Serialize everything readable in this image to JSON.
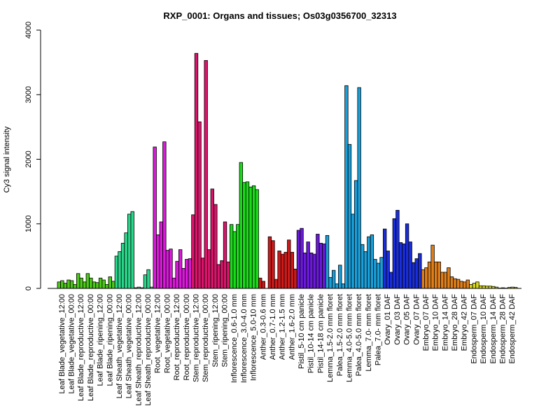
{
  "chart_data": {
    "type": "bar",
    "title": "RXP_0001: Organs and tissues; Os03g0356700_32313",
    "xlabel": "",
    "ylabel": "Cy3 signal intensity",
    "ylim": [
      0,
      4000
    ],
    "yticks": [
      0,
      1000,
      2000,
      3000,
      4000
    ],
    "grid": false,
    "groups": [
      {
        "label": "Leaf Blade_vegetative_12:00",
        "color": "#4cc919",
        "values": [
          100,
          120,
          80
        ]
      },
      {
        "label": "Leaf Blade_vegetative_00:00",
        "color": "#4cc919",
        "values": [
          130,
          120,
          60
        ]
      },
      {
        "label": "Leaf Blade_reproductive_12:00",
        "color": "#4cc919",
        "values": [
          230,
          160,
          100
        ]
      },
      {
        "label": "Leaf Blade_reproductive_00:00",
        "color": "#4cc919",
        "values": [
          230,
          160,
          100
        ]
      },
      {
        "label": "Leaf Blade_ripening_12:00",
        "color": "#4cc919",
        "values": [
          90,
          160,
          130
        ]
      },
      {
        "label": "Leaf Blade_ripening_00:00",
        "color": "#4cc919",
        "values": [
          60,
          180,
          110
        ]
      },
      {
        "label": "Leaf Sheath_vegetative_12:00",
        "color": "#2ad68a",
        "values": [
          500,
          570,
          700
        ]
      },
      {
        "label": "Leaf Sheath_vegetative_00:00",
        "color": "#2ad68a",
        "values": [
          860,
          1150,
          1190
        ]
      },
      {
        "label": "Leaf Sheath_reproductive_12:00",
        "color": "#2ad68a",
        "values": [
          10,
          20,
          10
        ]
      },
      {
        "label": "Leaf Sheath_reproductive_00:00",
        "color": "#2ad68a",
        "values": [
          210,
          290,
          20
        ]
      },
      {
        "label": "Root_vegetative_12:00",
        "color": "#d91ad9",
        "values": [
          2190,
          830,
          1030
        ]
      },
      {
        "label": "Root_vegetative_00:00",
        "color": "#d91ad9",
        "values": [
          2270,
          590,
          610
        ]
      },
      {
        "label": "Root_reproductive_12:00",
        "color": "#d91ad9",
        "values": [
          160,
          420,
          600
        ]
      },
      {
        "label": "Root_reproductive_00:00",
        "color": "#d91ad9",
        "values": [
          310,
          450,
          460
        ]
      },
      {
        "label": "Stem_reproductive_12:00",
        "color": "#d9156b",
        "values": [
          1140,
          3640,
          2580
        ]
      },
      {
        "label": "Stem_reproductive_00:00",
        "color": "#d9156b",
        "values": [
          470,
          3530,
          600
        ]
      },
      {
        "label": "Stem_ripening_12:00",
        "color": "#d9156b",
        "values": [
          1540,
          1300,
          370
        ]
      },
      {
        "label": "Stem_ripening_00:00",
        "color": "#d9156b",
        "values": [
          430,
          1030,
          410
        ]
      },
      {
        "label": "Inflorescence_0.6-1.0 mm",
        "color": "#1adb1a",
        "values": [
          990,
          880,
          990
        ]
      },
      {
        "label": "Inflorescence_3.0-4.0 mm",
        "color": "#1adb1a",
        "values": [
          1950,
          1640,
          1650
        ]
      },
      {
        "label": "Inflorescence_5.0-10 mm",
        "color": "#1adb1a",
        "values": [
          1570,
          1590,
          1530
        ]
      },
      {
        "label": "Anther_0.3-0.6 mm",
        "color": "#cc1a1a",
        "values": [
          160,
          110
        ]
      },
      {
        "label": "Anther_0.7-1.0 mm",
        "color": "#cc1a1a",
        "values": [
          800,
          740,
          140
        ]
      },
      {
        "label": "Anther_1.2-1.5 mm",
        "color": "#cc1a1a",
        "values": [
          580,
          530,
          560
        ]
      },
      {
        "label": "Anther_1.6-2.0 mm",
        "color": "#cc1a1a",
        "values": [
          750,
          560,
          300
        ]
      },
      {
        "label": "Pistil_5-10 cm panicle",
        "color": "#6a1ad9",
        "values": [
          900,
          930,
          550
        ]
      },
      {
        "label": "Pistil_10-14 cm panicle",
        "color": "#6a1ad9",
        "values": [
          720,
          550,
          530
        ]
      },
      {
        "label": "Pistil_14-18 cm panicle",
        "color": "#6a1ad9",
        "values": [
          840,
          700,
          690
        ]
      },
      {
        "label": "Lemma_1.5-2.0 mm floret",
        "color": "#1a9fd9",
        "values": [
          820,
          170,
          280
        ]
      },
      {
        "label": "Palea_1.5-2.0 mm floret",
        "color": "#1a9fd9",
        "values": [
          70,
          360,
          70
        ]
      },
      {
        "label": "Lemma_4.0-5.0 mm floret",
        "color": "#1a9fd9",
        "values": [
          3140,
          2230,
          1150
        ]
      },
      {
        "label": "Palea_4.0-5.0 mm floret",
        "color": "#1a9fd9",
        "values": [
          1670,
          3110,
          680
        ]
      },
      {
        "label": "Lemma_7.0- mm floret",
        "color": "#1a9fd9",
        "values": [
          570,
          800,
          830
        ]
      },
      {
        "label": "Palea_7.0- mm floret",
        "color": "#1a9fd9",
        "values": [
          450,
          390,
          480
        ]
      },
      {
        "label": "Ovary_01 DAF",
        "color": "#1a2ed9",
        "values": [
          920,
          580,
          250
        ]
      },
      {
        "label": "Ovary_03 DAF",
        "color": "#1a2ed9",
        "values": [
          1080,
          1210,
          710
        ]
      },
      {
        "label": "Ovary_05 DAF",
        "color": "#1a2ed9",
        "values": [
          690,
          1000,
          720
        ]
      },
      {
        "label": "Ovary_07 DAF",
        "color": "#1a2ed9",
        "values": [
          400,
          460,
          540
        ]
      },
      {
        "label": "Embryo_07 DAF",
        "color": "#e07f1a",
        "values": [
          290,
          320,
          410
        ]
      },
      {
        "label": "Embryo_10 DAF",
        "color": "#e07f1a",
        "values": [
          670,
          410,
          410
        ]
      },
      {
        "label": "Embryo_14 DAF",
        "color": "#e07f1a",
        "values": [
          250,
          250,
          320
        ]
      },
      {
        "label": "Embryo_28 DAF",
        "color": "#e07f1a",
        "values": [
          180,
          150,
          140
        ]
      },
      {
        "label": "Embryo_42 DAF",
        "color": "#e07f1a",
        "values": [
          110,
          100,
          130
        ]
      },
      {
        "label": "Endosperm_07 DAF",
        "color": "#d9d91a",
        "values": [
          60,
          80,
          100
        ]
      },
      {
        "label": "Endosperm_10 DAF",
        "color": "#d9d91a",
        "values": [
          40,
          40,
          35
        ]
      },
      {
        "label": "Endosperm_14 DAF",
        "color": "#d9d91a",
        "values": [
          35,
          30,
          20
        ]
      },
      {
        "label": "Endosperm_28 DAF",
        "color": "#d9d91a",
        "values": [
          5,
          10,
          5
        ]
      },
      {
        "label": "Endosperm_42 DAF",
        "color": "#d9d91a",
        "values": [
          15,
          20,
          15
        ]
      }
    ]
  }
}
